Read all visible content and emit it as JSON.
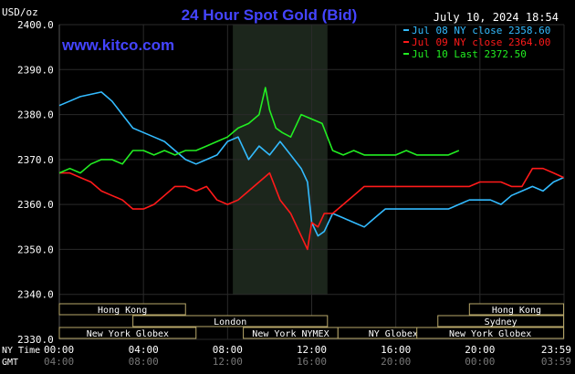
{
  "header": {
    "unit_label": "USD/oz",
    "title": "24 Hour Spot Gold (Bid)",
    "timestamp": "July 10, 2024 18:54",
    "watermark": "www.kitco.com"
  },
  "colors": {
    "background": "#000000",
    "title": "#4444ff",
    "grid": "#2a2a2a",
    "session_shade": "#1c261c",
    "jul08": "#33bbff",
    "jul09": "#ff1a1a",
    "jul10": "#22ee22",
    "session_box_fill": "#000000",
    "session_box_border": "#b8a86a",
    "session_box_text": "#ffffff",
    "text": "#ffffff"
  },
  "legend": [
    {
      "label": "Jul 08 NY close 2358.60",
      "color": "#33bbff"
    },
    {
      "label": "Jul 09 NY close 2364.00",
      "color": "#ff1a1a"
    },
    {
      "label": "Jul 10 Last 2372.50",
      "color": "#22ee22"
    }
  ],
  "sessions": [
    {
      "label": "Hong Kong",
      "start": 0,
      "end": 6
    },
    {
      "label": "London",
      "start": 3.5,
      "end": 12.75
    },
    {
      "label": "New York Globex",
      "start": 0,
      "end": 6.5
    },
    {
      "label": "New York NYMEX",
      "start": 8.75,
      "end": 13.25
    },
    {
      "label": "NY Globex",
      "start": 13.25,
      "end": 18.5
    },
    {
      "label": "Hong Kong",
      "start": 19.5,
      "end": 23.98
    },
    {
      "label": "Sydney",
      "start": 18,
      "end": 23.98
    },
    {
      "label": "New York Globex",
      "start": 17,
      "end": 23.98
    }
  ],
  "axis": {
    "ny_time_label": "NY Time",
    "gmt_label": "GMT",
    "x_ticks": [
      "00:00",
      "04:00",
      "08:00",
      "12:00",
      "16:00",
      "20:00",
      "23:59"
    ],
    "gmt_ticks": [
      "04:00",
      "08:00",
      "12:00",
      "16:00",
      "20:00",
      "00:00",
      "03:59"
    ]
  },
  "chart_data": {
    "type": "line",
    "title": "24 Hour Spot Gold (Bid)",
    "ylabel": "USD/oz",
    "xlabel": "NY Time",
    "ylim": [
      2330,
      2400
    ],
    "xlim": [
      0,
      24
    ],
    "y_ticks": [
      "2330.0",
      "2340.0",
      "2350.0",
      "2360.0",
      "2370.0",
      "2380.0",
      "2390.0",
      "2400.0"
    ],
    "shaded_region": [
      8.25,
      12.75
    ],
    "grid": true,
    "legend_position": "top-right",
    "series": [
      {
        "name": "Jul 08 NY close 2358.60",
        "color": "#33bbff",
        "x": [
          0,
          0.5,
          1,
          1.5,
          2,
          2.5,
          3,
          3.5,
          4,
          4.5,
          5,
          5.5,
          6,
          6.5,
          7,
          7.5,
          8,
          8.5,
          9,
          9.5,
          10,
          10.5,
          11,
          11.5,
          11.8,
          12,
          12.3,
          12.6,
          13,
          13.5,
          14,
          14.5,
          15,
          15.5,
          16,
          16.5,
          17,
          17.5,
          18,
          18.5,
          19,
          19.5,
          20,
          20.5,
          21,
          21.5,
          22,
          22.5,
          23,
          23.5,
          23.98
        ],
        "y": [
          2382,
          2383,
          2384,
          2384.5,
          2385,
          2383,
          2380,
          2377,
          2376,
          2375,
          2374,
          2372,
          2370,
          2369,
          2370,
          2371,
          2374,
          2375,
          2370,
          2373,
          2371,
          2374,
          2371,
          2368,
          2365,
          2356,
          2353,
          2354,
          2358,
          2357,
          2356,
          2355,
          2357,
          2359,
          2359,
          2359,
          2359,
          2359,
          2359,
          2359,
          2360,
          2361,
          2361,
          2361,
          2360,
          2362,
          2363,
          2364,
          2363,
          2365,
          2366
        ]
      },
      {
        "name": "Jul 09 NY close 2364.00",
        "color": "#ff1a1a",
        "x": [
          0,
          0.5,
          1,
          1.5,
          2,
          2.5,
          3,
          3.5,
          4,
          4.5,
          5,
          5.5,
          6,
          6.5,
          7,
          7.5,
          8,
          8.5,
          9,
          9.5,
          10,
          10.5,
          11,
          11.5,
          11.8,
          12,
          12.3,
          12.6,
          13,
          13.5,
          14,
          14.5,
          15,
          15.5,
          16,
          16.5,
          17,
          17.5,
          18,
          18.5,
          19,
          19.5,
          20,
          20.5,
          21,
          21.5,
          22,
          22.5,
          23,
          23.5,
          23.98
        ],
        "y": [
          2367,
          2367,
          2366,
          2365,
          2363,
          2362,
          2361,
          2359,
          2359,
          2360,
          2362,
          2364,
          2364,
          2363,
          2364,
          2361,
          2360,
          2361,
          2363,
          2365,
          2367,
          2361,
          2358,
          2353,
          2350,
          2356,
          2355,
          2358,
          2358,
          2360,
          2362,
          2364,
          2364,
          2364,
          2364,
          2364,
          2364,
          2364,
          2364,
          2364,
          2364,
          2364,
          2365,
          2365,
          2365,
          2364,
          2364,
          2368,
          2368,
          2367,
          2366
        ]
      },
      {
        "name": "Jul 10 Last 2372.50",
        "color": "#22ee22",
        "x": [
          0,
          0.5,
          1,
          1.5,
          2,
          2.5,
          3,
          3.5,
          4,
          4.5,
          5,
          5.5,
          6,
          6.5,
          7,
          7.5,
          8,
          8.5,
          9,
          9.5,
          9.8,
          10,
          10.3,
          10.6,
          11,
          11.5,
          12,
          12.5,
          13,
          13.5,
          14,
          14.5,
          15,
          15.5,
          16,
          16.5,
          17,
          17.5,
          18,
          18.5,
          19
        ],
        "y": [
          2367,
          2368,
          2367,
          2369,
          2370,
          2370,
          2369,
          2372,
          2372,
          2371,
          2372,
          2371,
          2372,
          2372,
          2373,
          2374,
          2375,
          2377,
          2378,
          2380,
          2386,
          2381,
          2377,
          2376,
          2375,
          2380,
          2379,
          2378,
          2372,
          2371,
          2372,
          2371,
          2371,
          2371,
          2371,
          2372,
          2371,
          2371,
          2371,
          2371,
          2372
        ]
      }
    ]
  }
}
